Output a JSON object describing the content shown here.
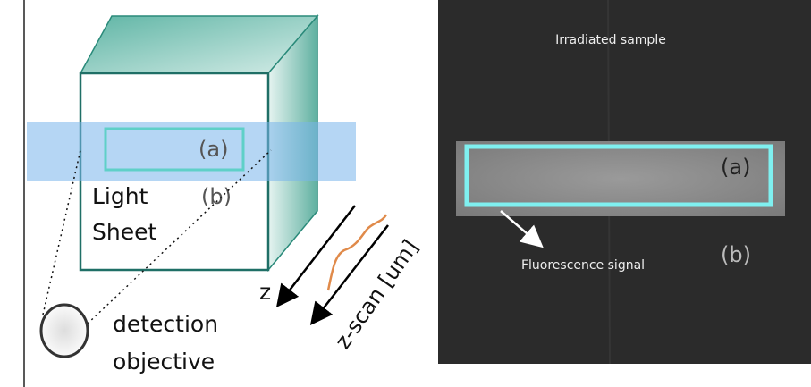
{
  "left_panel": {
    "label_a": "(a)",
    "label_b": "(b)",
    "light_sheet": [
      "Light",
      "Sheet"
    ],
    "axis_z": "z",
    "z_scan": "z-scan [um]",
    "detection": [
      "detection",
      "objective"
    ]
  },
  "right_panel": {
    "title": "Irradiated sample",
    "label_a": "(a)",
    "label_b": "(b)",
    "annotation": "Fluorescence signal"
  }
}
